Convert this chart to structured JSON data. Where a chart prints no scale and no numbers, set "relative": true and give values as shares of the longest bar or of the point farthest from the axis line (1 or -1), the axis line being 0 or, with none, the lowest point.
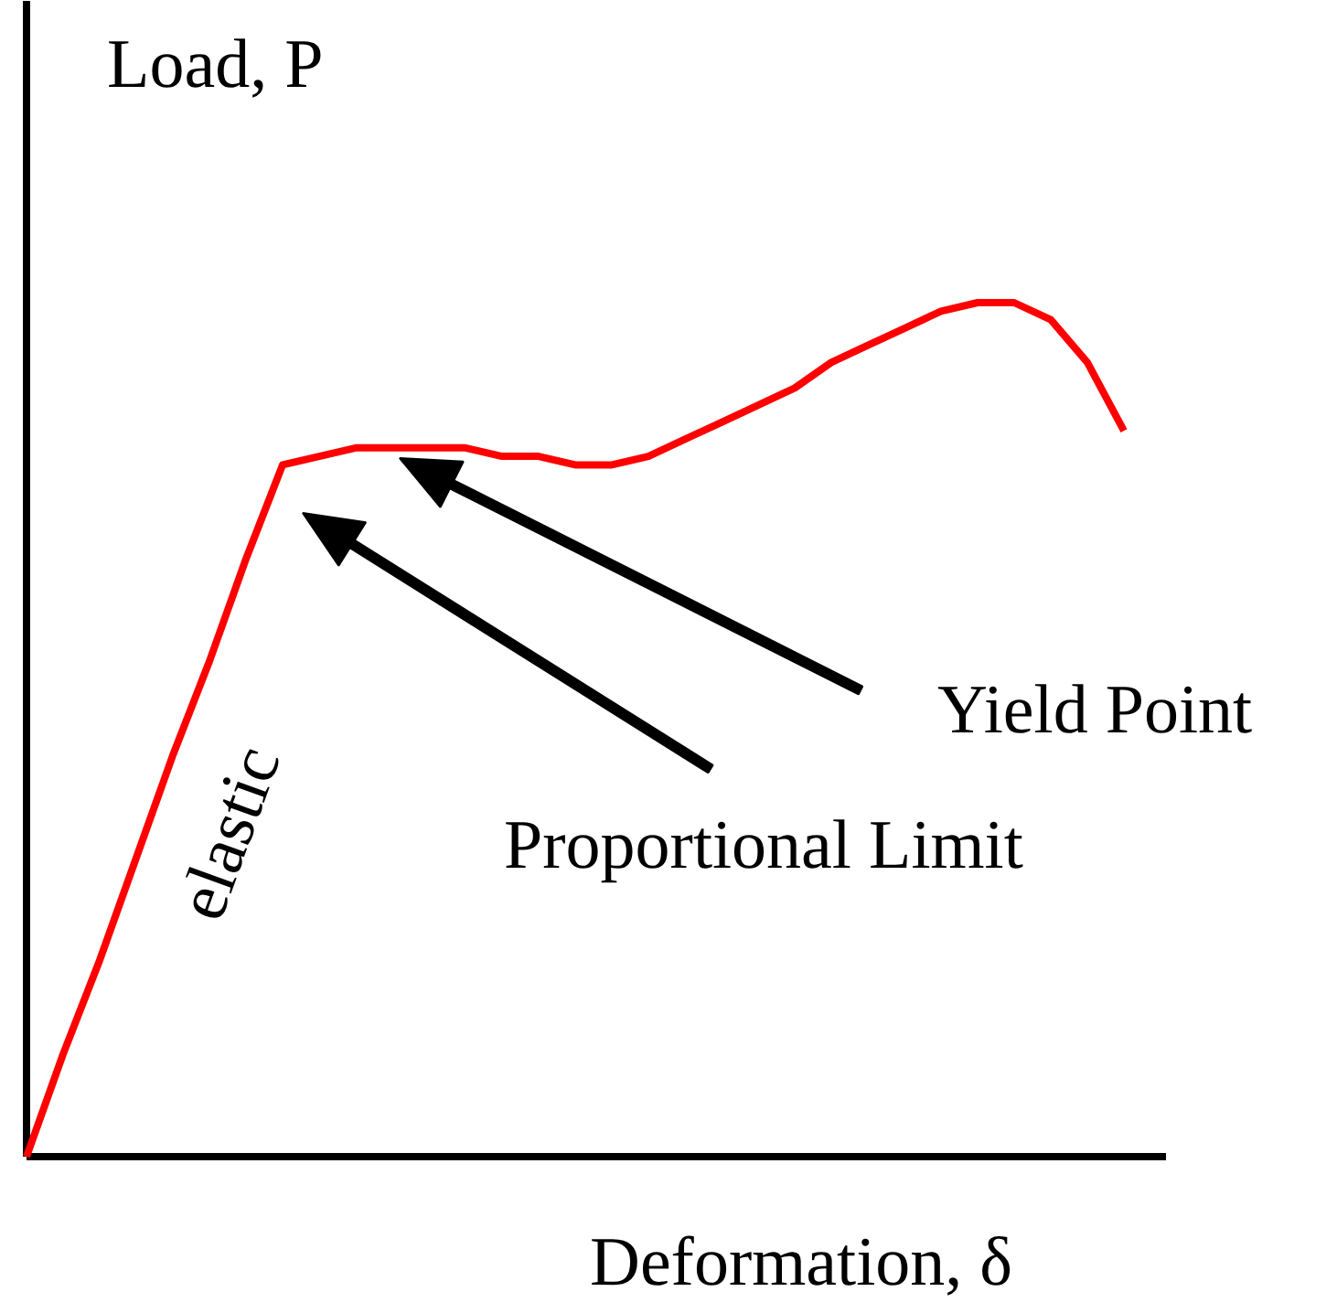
{
  "chart_data": {
    "type": "line",
    "relative": true,
    "xlabel": "Deformation, δ",
    "ylabel": "Load, P",
    "categories": [
      null,
      null,
      null,
      null,
      null,
      null,
      null,
      null,
      null,
      null,
      null,
      null,
      null,
      null,
      null,
      null,
      null,
      null,
      null,
      null,
      null,
      null,
      null,
      null,
      null,
      null,
      null,
      null,
      null,
      null,
      null
    ],
    "series": [
      {
        "color": "#ff0000",
        "values": [
          0,
          0.12,
          0.23,
          0.35,
          0.47,
          0.58,
          0.7,
          0.81,
          0.82,
          0.83,
          0.83,
          0.83,
          0.83,
          0.82,
          0.82,
          0.81,
          0.81,
          0.82,
          0.84,
          0.86,
          0.88,
          0.9,
          0.93,
          0.95,
          0.97,
          0.99,
          1.0,
          1.0,
          0.98,
          0.93,
          0.85
        ]
      }
    ],
    "annotations": [
      "elastic",
      "Proportional Limit",
      "Yield Point"
    ],
    "grid": false
  }
}
